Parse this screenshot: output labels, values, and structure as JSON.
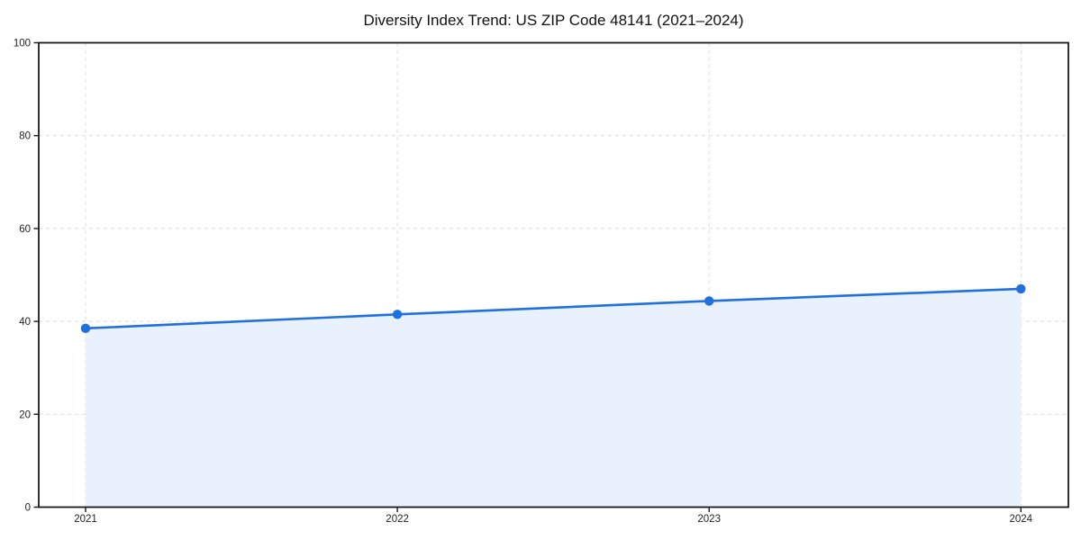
{
  "figure": {
    "background": "#ffffff"
  },
  "chart_data": {
    "type": "line",
    "title": "Diversity Index Trend: US ZIP Code 48141 (2021–2024)",
    "categories": [
      "2021",
      "2022",
      "2023",
      "2024"
    ],
    "series": [
      {
        "name": "Diversity Index",
        "values": [
          38.5,
          41.5,
          44.4,
          47.0
        ]
      }
    ],
    "xlabel": "",
    "ylabel": "",
    "ylim": [
      0,
      100
    ],
    "yticks": [
      0,
      20,
      40,
      60,
      80,
      100
    ],
    "grid": true,
    "grid_style": "dashed",
    "area_fill": true,
    "legend_position": "none",
    "colors": {
      "line": "#2170e0",
      "marker": "#2170e0",
      "area_fill": "#e9f1fc",
      "grid": "#dcdcdc",
      "spine": "#1a1a1a",
      "tick_label": "#1f1f1f",
      "title": "#111111",
      "background": "#ffffff"
    }
  }
}
